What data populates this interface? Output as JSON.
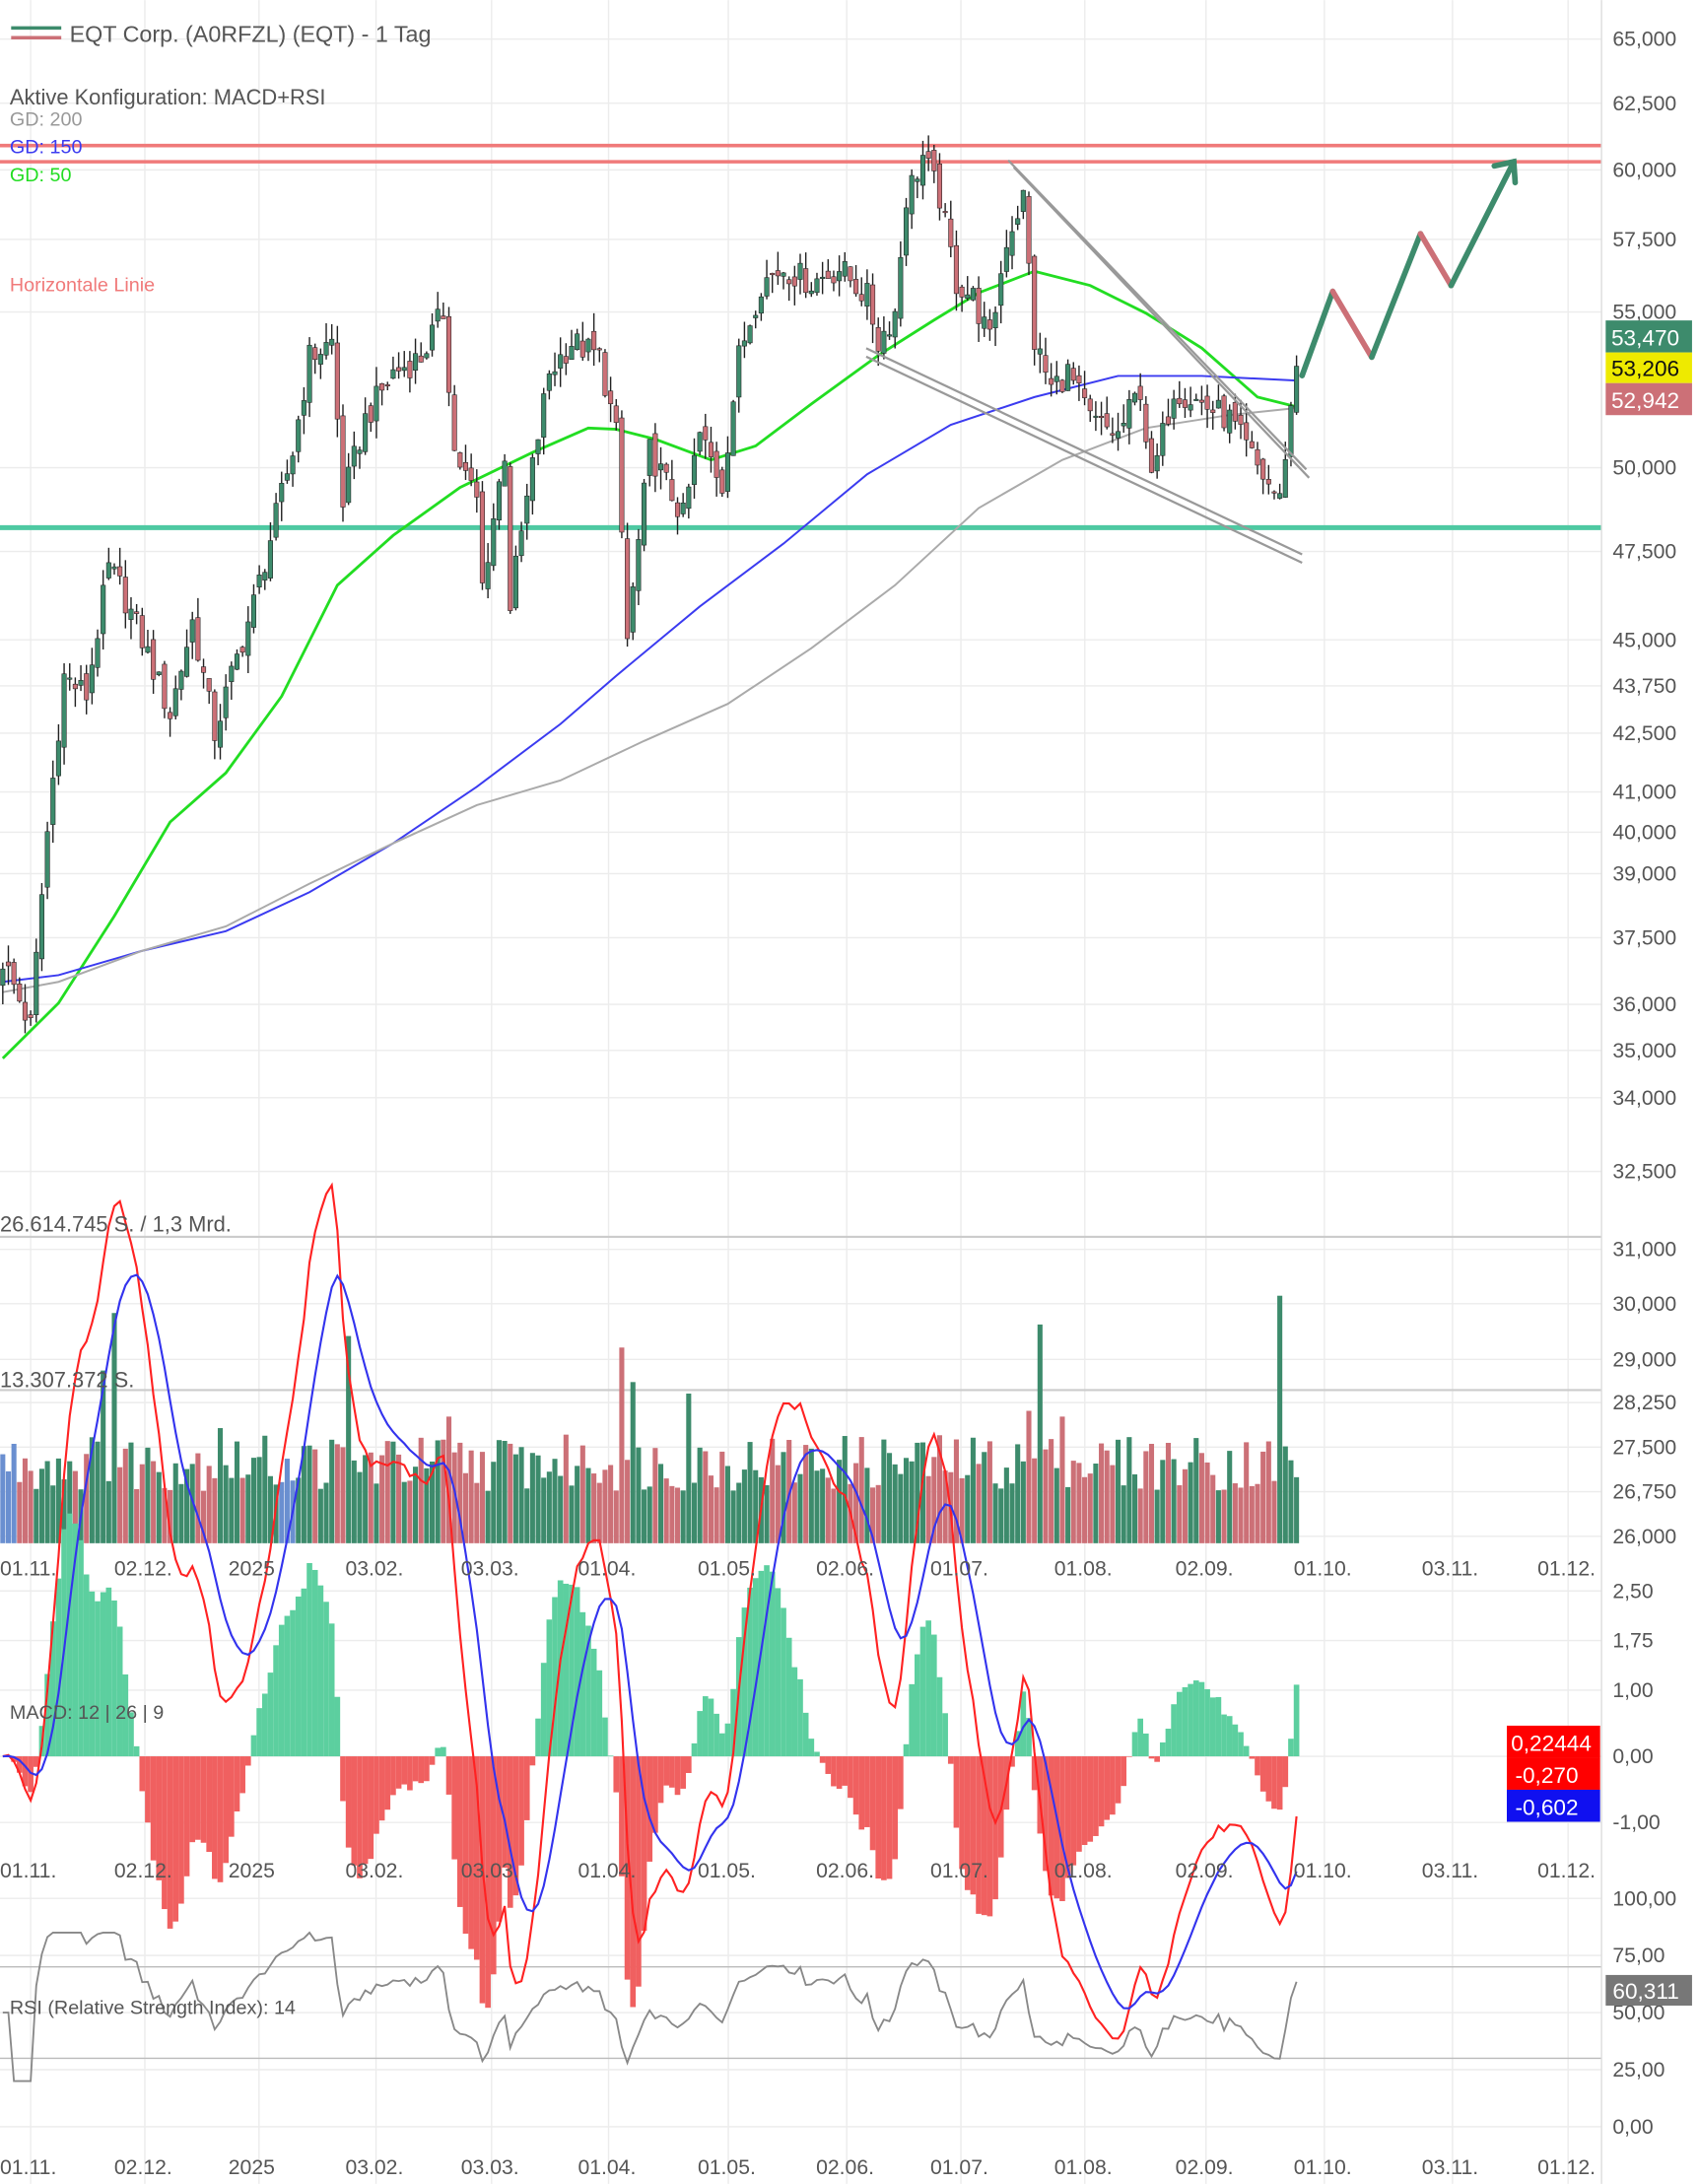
{
  "header": {
    "title": "EQT Corp. (A0RFZL) (EQT) - 1 Tag",
    "config": "Aktive Konfiguration: MACD+RSI",
    "gd200": "GD: 200",
    "gd150": "GD: 150",
    "gd50": "GD: 50",
    "hline_label": "Horizontale Linie"
  },
  "colors": {
    "up": "#3d8b6c",
    "down": "#cc7077",
    "gd50": "#22dd22",
    "gd150": "#3b3bf0",
    "gd200": "#aaaaaa",
    "resistance": "#f07a7a",
    "support": "#4ec9a2",
    "macd": "#ff2222",
    "signal": "#3333ee",
    "rsi": "#888888"
  },
  "chart_data": [
    {
      "type": "candlestick",
      "title": "EQT Corp. (A0RFZL) (EQT) - 1 Tag",
      "scale": "log",
      "ylim": [
        32000,
        66000
      ],
      "y_ticks": [
        "65,000",
        "62,500",
        "60,000",
        "57,500",
        "55,000",
        "50,000",
        "47,500",
        "45,000",
        "43,750",
        "42,500",
        "41,000",
        "40,000",
        "39,000",
        "37,500",
        "36,000",
        "35,000",
        "34,000",
        "32,500"
      ],
      "y_tick_values": [
        65000,
        62500,
        60000,
        57500,
        55000,
        50000,
        47500,
        45000,
        43750,
        42500,
        41000,
        40000,
        39000,
        37500,
        36000,
        35000,
        34000,
        32500
      ],
      "x_ticks": [
        "01.11.",
        "02.12.",
        "2025",
        "03.02.",
        "03.03.",
        "01.04.",
        "01.05.",
        "02.06.",
        "01.07.",
        "01.08.",
        "02.09.",
        "01.10.",
        "03.11.",
        "01.12."
      ],
      "close_keypoints_day_price": [
        [
          0,
          37000
        ],
        [
          5,
          35500
        ],
        [
          8,
          40000
        ],
        [
          11,
          44000
        ],
        [
          15,
          43500
        ],
        [
          19,
          47000
        ],
        [
          21,
          46500
        ],
        [
          25,
          45000
        ],
        [
          30,
          43000
        ],
        [
          34,
          45500
        ],
        [
          38,
          42500
        ],
        [
          41,
          44000
        ],
        [
          45,
          46000
        ],
        [
          49,
          48500
        ],
        [
          52,
          50500
        ],
        [
          55,
          53500
        ],
        [
          59,
          54000
        ],
        [
          61,
          49000
        ],
        [
          65,
          51500
        ],
        [
          70,
          53000
        ],
        [
          75,
          53500
        ],
        [
          79,
          55000
        ],
        [
          81,
          50500
        ],
        [
          85,
          49000
        ],
        [
          86,
          46500
        ],
        [
          90,
          50500
        ],
        [
          91,
          46000
        ],
        [
          94,
          49000
        ],
        [
          98,
          53000
        ],
        [
          102,
          54000
        ],
        [
          107,
          53500
        ],
        [
          110,
          51000
        ],
        [
          112,
          45000
        ],
        [
          116,
          50500
        ],
        [
          122,
          48500
        ],
        [
          125,
          51000
        ],
        [
          129,
          49500
        ],
        [
          132,
          53500
        ],
        [
          136,
          56000
        ],
        [
          140,
          56500
        ],
        [
          145,
          56000
        ],
        [
          150,
          56500
        ],
        [
          155,
          55500
        ],
        [
          157,
          54000
        ],
        [
          160,
          55000
        ],
        [
          162,
          59000
        ],
        [
          165,
          60500
        ],
        [
          168,
          59000
        ],
        [
          171,
          56000
        ],
        [
          174,
          55500
        ],
        [
          177,
          54000
        ],
        [
          180,
          57500
        ],
        [
          183,
          59000
        ],
        [
          185,
          54000
        ],
        [
          188,
          52500
        ],
        [
          191,
          53000
        ],
        [
          195,
          51500
        ],
        [
          200,
          51000
        ],
        [
          204,
          52500
        ],
        [
          206,
          49500
        ],
        [
          210,
          52500
        ],
        [
          215,
          52000
        ],
        [
          220,
          51500
        ],
        [
          225,
          50000
        ],
        [
          229,
          49000
        ],
        [
          230,
          50500
        ],
        [
          232,
          53206
        ]
      ],
      "last_price": "53,206",
      "bid": "53,470",
      "ask": "52,942",
      "moving_averages": [
        {
          "name": "GD: 50",
          "points_day_price": [
            [
              0,
              34830
            ],
            [
              10,
              36030
            ],
            [
              20,
              38000
            ],
            [
              30,
              40250
            ],
            [
              40,
              41480
            ],
            [
              50,
              43470
            ],
            [
              60,
              46530
            ],
            [
              70,
              47970
            ],
            [
              82,
              49400
            ],
            [
              95,
              50470
            ],
            [
              105,
              51230
            ],
            [
              110,
              51190
            ],
            [
              117,
              50880
            ],
            [
              127,
              50240
            ],
            [
              135,
              50670
            ],
            [
              145,
              51990
            ],
            [
              157,
              53560
            ],
            [
              167,
              54730
            ],
            [
              175,
              55650
            ],
            [
              185,
              56390
            ],
            [
              195,
              55900
            ],
            [
              205,
              54960
            ],
            [
              215,
              53800
            ],
            [
              225,
              52210
            ],
            [
              232,
              51900
            ]
          ]
        },
        {
          "name": "GD: 150",
          "points_day_price": [
            [
              0,
              36500
            ],
            [
              10,
              36650
            ],
            [
              25,
              37200
            ],
            [
              40,
              37650
            ],
            [
              55,
              38560
            ],
            [
              70,
              39730
            ],
            [
              85,
              41130
            ],
            [
              100,
              42740
            ],
            [
              110,
              44020
            ],
            [
              125,
              45930
            ],
            [
              140,
              47730
            ],
            [
              155,
              49800
            ],
            [
              170,
              51330
            ],
            [
              185,
              52210
            ],
            [
              200,
              52890
            ],
            [
              215,
              52890
            ],
            [
              232,
              52740
            ]
          ]
        },
        {
          "name": "GD: 200",
          "points_day_price": [
            [
              0,
              36270
            ],
            [
              10,
              36500
            ],
            [
              25,
              37200
            ],
            [
              40,
              37760
            ],
            [
              55,
              38760
            ],
            [
              70,
              39730
            ],
            [
              85,
              40670
            ],
            [
              100,
              41290
            ],
            [
              115,
              42300
            ],
            [
              130,
              43270
            ],
            [
              145,
              44770
            ],
            [
              160,
              46530
            ],
            [
              175,
              48780
            ],
            [
              190,
              50240
            ],
            [
              205,
              51230
            ],
            [
              220,
              51640
            ],
            [
              232,
              51860
            ]
          ]
        }
      ],
      "horizontal_lines": [
        {
          "label": "Horizontale Linie",
          "price": 60900
        },
        {
          "price": 60300
        },
        {
          "price": 48200
        }
      ],
      "forecast_arrow_prices": [
        52900,
        55700,
        53500,
        57700,
        55900,
        60300
      ]
    },
    {
      "type": "bar",
      "title": "Volumen",
      "labels": [
        "26.614.745 S. / 1,3 Mrd.",
        "13.307.372 S."
      ],
      "right_ticks": [
        "31,000",
        "30,000",
        "29,000",
        "28,250",
        "27,500",
        "26,750",
        "26,000"
      ],
      "volume_spikes_day_shares": [
        [
          20,
          20000000
        ],
        [
          62,
          18000000
        ],
        [
          111,
          17000000
        ],
        [
          113,
          14000000
        ],
        [
          186,
          19000000
        ],
        [
          229,
          21500000
        ],
        [
          184,
          11500000
        ],
        [
          190,
          11000000
        ],
        [
          18,
          15000000
        ],
        [
          80,
          11000000
        ],
        [
          39,
          10000000
        ],
        [
          123,
          13000000
        ]
      ]
    },
    {
      "type": "line",
      "title": "MACD: 12 | 26 | 9",
      "y_ticks": [
        "2,50",
        "1,75",
        "1,00",
        "0,00",
        "-1,00"
      ],
      "y_tick_values": [
        2.5,
        1.75,
        1.0,
        0,
        -1.0
      ],
      "ylim": [
        -1.5,
        2.5
      ],
      "badges": [
        "0,22444",
        "-0,270",
        "-0,602"
      ]
    },
    {
      "type": "line",
      "title": "RSI (Relative Strength Index): 14",
      "y_ticks": [
        "100,00",
        "75,00",
        "50,00",
        "25,00",
        "0,00"
      ],
      "y_tick_values": [
        100,
        75,
        50,
        25,
        0
      ],
      "ylim": [
        0,
        100
      ],
      "badge": "60,311"
    }
  ]
}
